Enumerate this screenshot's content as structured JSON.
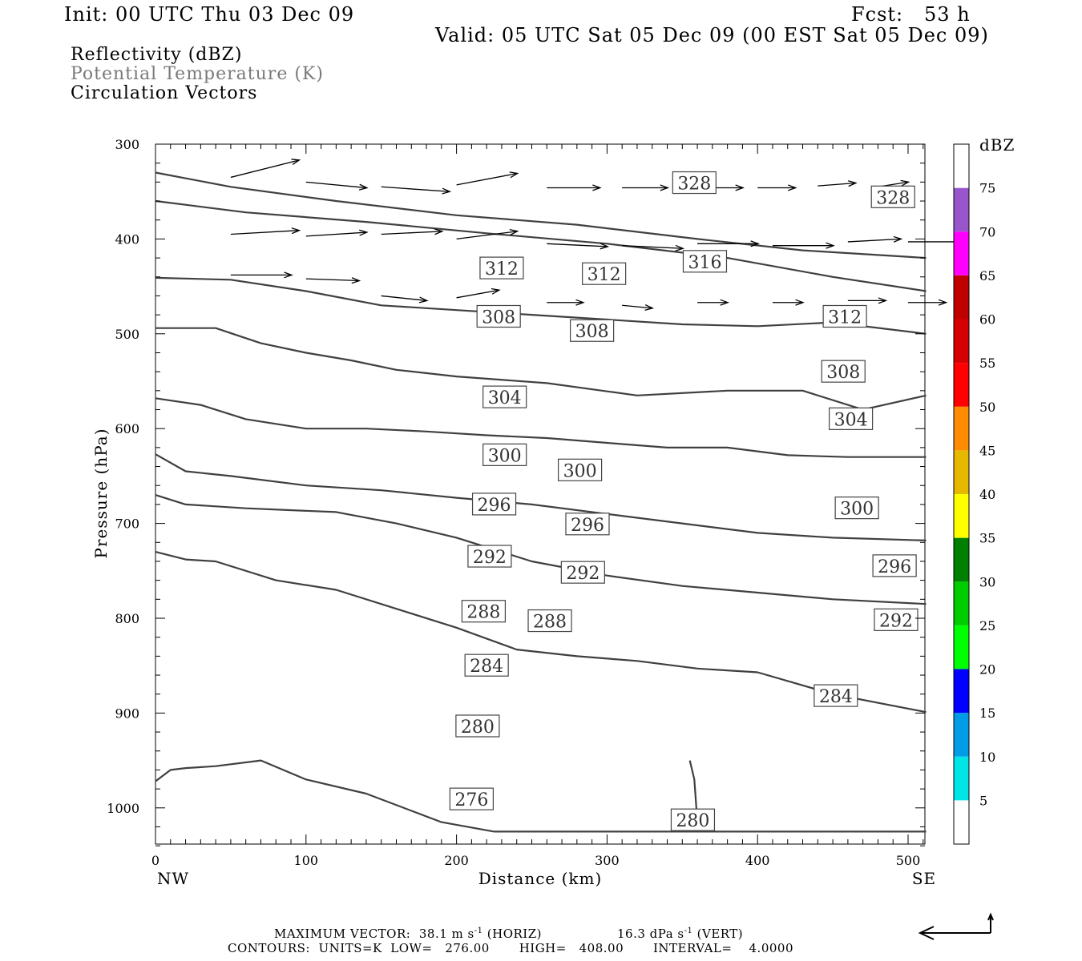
{
  "header": {
    "init": "Init: 00 UTC Thu 03 Dec 09",
    "fcst": "Fcst:   53 h",
    "valid": "Valid: 05 UTC Sat 05 Dec 09 (00 EST Sat 05 Dec 09)"
  },
  "fields": {
    "reflectivity": "Reflectivity (dBZ)",
    "theta": "Potential Temperature (K)",
    "vectors": "Circulation Vectors"
  },
  "footer": {
    "max_vector_label": "MAXIMUM VECTOR:",
    "horiz_value": "38.1 m s",
    "horiz_exp": "-1",
    "horiz_tag": "(HORIZ)",
    "vert_value": "16.3 dPa s",
    "vert_exp": "-1",
    "vert_tag": "(VERT)",
    "contours_line": "CONTOURS:  UNITS=K  LOW=   276.00       HIGH=   408.00       INTERVAL=    4.0000"
  },
  "colorbar": {
    "unit": "dBZ",
    "levels": [
      "5",
      "10",
      "15",
      "20",
      "25",
      "30",
      "35",
      "40",
      "45",
      "50",
      "55",
      "60",
      "65",
      "70",
      "75"
    ],
    "colors": [
      "#00e6e6",
      "#009ce6",
      "#0000ff",
      "#00ff00",
      "#00cc00",
      "#008000",
      "#ffff00",
      "#e6b800",
      "#ff8c00",
      "#ff0000",
      "#d60000",
      "#c00000",
      "#ff00ff",
      "#9955cc",
      "#ffffff"
    ]
  },
  "chart_data": {
    "type": "cross-section",
    "xlabel": "Distance (km)",
    "ylabel": "Pressure (hPa)",
    "x_range": [
      0,
      512
    ],
    "y_range": [
      300,
      1040
    ],
    "y_inverted": true,
    "x_ticks": [
      "0",
      "100",
      "200",
      "300",
      "400",
      "500"
    ],
    "y_ticks": [
      "300",
      "400",
      "500",
      "600",
      "700",
      "800",
      "900",
      "1000"
    ],
    "x_end_labels": {
      "left": "NW",
      "right": "SE"
    },
    "contour_interval_K": 4,
    "contour_labels": [
      {
        "value": "328",
        "x": 358,
        "p": 341
      },
      {
        "value": "328",
        "x": 490,
        "p": 356
      },
      {
        "value": "316",
        "x": 365,
        "p": 424
      },
      {
        "value": "312",
        "x": 230,
        "p": 431
      },
      {
        "value": "312",
        "x": 298,
        "p": 437
      },
      {
        "value": "312",
        "x": 458,
        "p": 482
      },
      {
        "value": "308",
        "x": 228,
        "p": 482
      },
      {
        "value": "308",
        "x": 290,
        "p": 497
      },
      {
        "value": "308",
        "x": 457,
        "p": 540
      },
      {
        "value": "304",
        "x": 232,
        "p": 567
      },
      {
        "value": "304",
        "x": 462,
        "p": 590
      },
      {
        "value": "300",
        "x": 232,
        "p": 628
      },
      {
        "value": "300",
        "x": 282,
        "p": 644
      },
      {
        "value": "300",
        "x": 466,
        "p": 684
      },
      {
        "value": "296",
        "x": 225,
        "p": 680
      },
      {
        "value": "296",
        "x": 287,
        "p": 701
      },
      {
        "value": "296",
        "x": 491,
        "p": 745
      },
      {
        "value": "292",
        "x": 222,
        "p": 735
      },
      {
        "value": "292",
        "x": 284,
        "p": 752
      },
      {
        "value": "292",
        "x": 492,
        "p": 802
      },
      {
        "value": "288",
        "x": 218,
        "p": 793
      },
      {
        "value": "288",
        "x": 262,
        "p": 803
      },
      {
        "value": "284",
        "x": 220,
        "p": 850
      },
      {
        "value": "284",
        "x": 452,
        "p": 882
      },
      {
        "value": "280",
        "x": 214,
        "p": 914
      },
      {
        "value": "280",
        "x": 357,
        "p": 1013
      },
      {
        "value": "276",
        "x": 210,
        "p": 991
      }
    ],
    "isentropes": [
      {
        "x": [
          0,
          50,
          120,
          200,
          280,
          360,
          430,
          512
        ],
        "p": [
          330,
          345,
          360,
          375,
          385,
          400,
          412,
          420
        ]
      },
      {
        "x": [
          0,
          60,
          140,
          220,
          300,
          380,
          450,
          512
        ],
        "p": [
          360,
          372,
          382,
          394,
          405,
          420,
          440,
          455
        ]
      },
      {
        "x": [
          0,
          50,
          100,
          150,
          200,
          250,
          300,
          350,
          400,
          450,
          512
        ],
        "p": [
          441,
          443,
          455,
          470,
          475,
          480,
          485,
          490,
          492,
          488,
          500
        ]
      },
      {
        "x": [
          0,
          40,
          70,
          100,
          130,
          160,
          200,
          260,
          320,
          380,
          430,
          470,
          512
        ],
        "p": [
          494,
          494,
          510,
          520,
          528,
          538,
          545,
          552,
          565,
          560,
          560,
          580,
          565
        ]
      },
      {
        "x": [
          0,
          30,
          60,
          100,
          140,
          180,
          220,
          260,
          300,
          340,
          380,
          420,
          460,
          512
        ],
        "p": [
          568,
          575,
          590,
          600,
          600,
          603,
          607,
          610,
          615,
          620,
          620,
          628,
          630,
          630
        ]
      },
      {
        "x": [
          0,
          20,
          50,
          100,
          150,
          200,
          250,
          300,
          350,
          400,
          450,
          512
        ],
        "p": [
          627,
          645,
          650,
          660,
          665,
          673,
          680,
          690,
          700,
          710,
          715,
          718
        ]
      },
      {
        "x": [
          0,
          20,
          60,
          120,
          160,
          200,
          250,
          300,
          350,
          400,
          450,
          512
        ],
        "p": [
          670,
          680,
          684,
          688,
          700,
          715,
          740,
          755,
          766,
          773,
          780,
          785
        ]
      },
      {
        "x": [
          0,
          20,
          40,
          80,
          120,
          160,
          200,
          240,
          280,
          320,
          360,
          400,
          450,
          512
        ],
        "p": [
          730,
          738,
          740,
          760,
          770,
          790,
          810,
          833,
          840,
          845,
          853,
          857,
          880,
          899
        ]
      },
      {
        "x": [
          0,
          10,
          20,
          40,
          70,
          100,
          140,
          190,
          225
        ],
        "p": [
          972,
          960,
          958,
          956,
          950,
          970,
          985,
          1015,
          1025
        ]
      },
      {
        "x": [
          225,
          512
        ],
        "p": [
          1025,
          1025
        ]
      },
      {
        "x": [
          355,
          358,
          360
        ],
        "p": [
          950,
          970,
          1015
        ]
      }
    ],
    "vectors": [
      {
        "x": 50,
        "p": 335,
        "u": 45,
        "w": -18
      },
      {
        "x": 100,
        "p": 340,
        "u": 40,
        "w": 6
      },
      {
        "x": 150,
        "p": 345,
        "u": 45,
        "w": 5
      },
      {
        "x": 200,
        "p": 343,
        "u": 40,
        "w": -12
      },
      {
        "x": 260,
        "p": 346,
        "u": 35,
        "w": 0
      },
      {
        "x": 310,
        "p": 346,
        "u": 30,
        "w": 0
      },
      {
        "x": 360,
        "p": 346,
        "u": 30,
        "w": 0
      },
      {
        "x": 400,
        "p": 346,
        "u": 25,
        "w": 0
      },
      {
        "x": 440,
        "p": 344,
        "u": 25,
        "w": -3
      },
      {
        "x": 480,
        "p": 345,
        "u": 20,
        "w": -5
      },
      {
        "x": 50,
        "p": 395,
        "u": 45,
        "w": -4
      },
      {
        "x": 100,
        "p": 397,
        "u": 40,
        "w": -4
      },
      {
        "x": 150,
        "p": 395,
        "u": 40,
        "w": -3
      },
      {
        "x": 200,
        "p": 400,
        "u": 40,
        "w": -8
      },
      {
        "x": 260,
        "p": 405,
        "u": 40,
        "w": 3
      },
      {
        "x": 310,
        "p": 407,
        "u": 40,
        "w": 3
      },
      {
        "x": 360,
        "p": 405,
        "u": 40,
        "w": 0
      },
      {
        "x": 410,
        "p": 407,
        "u": 40,
        "w": 0
      },
      {
        "x": 460,
        "p": 403,
        "u": 35,
        "w": -3
      },
      {
        "x": 500,
        "p": 403,
        "u": 35,
        "w": 0
      },
      {
        "x": 50,
        "p": 438,
        "u": 40,
        "w": 0
      },
      {
        "x": 100,
        "p": 442,
        "u": 35,
        "w": 2
      },
      {
        "x": 150,
        "p": 460,
        "u": 30,
        "w": 5
      },
      {
        "x": 200,
        "p": 462,
        "u": 28,
        "w": -8
      },
      {
        "x": 260,
        "p": 467,
        "u": 24,
        "w": 0
      },
      {
        "x": 310,
        "p": 470,
        "u": 20,
        "w": 3
      },
      {
        "x": 360,
        "p": 467,
        "u": 20,
        "w": 0
      },
      {
        "x": 410,
        "p": 467,
        "u": 20,
        "w": 0
      },
      {
        "x": 460,
        "p": 465,
        "u": 25,
        "w": 0
      },
      {
        "x": 500,
        "p": 467,
        "u": 25,
        "w": 0
      }
    ],
    "grid": false
  }
}
